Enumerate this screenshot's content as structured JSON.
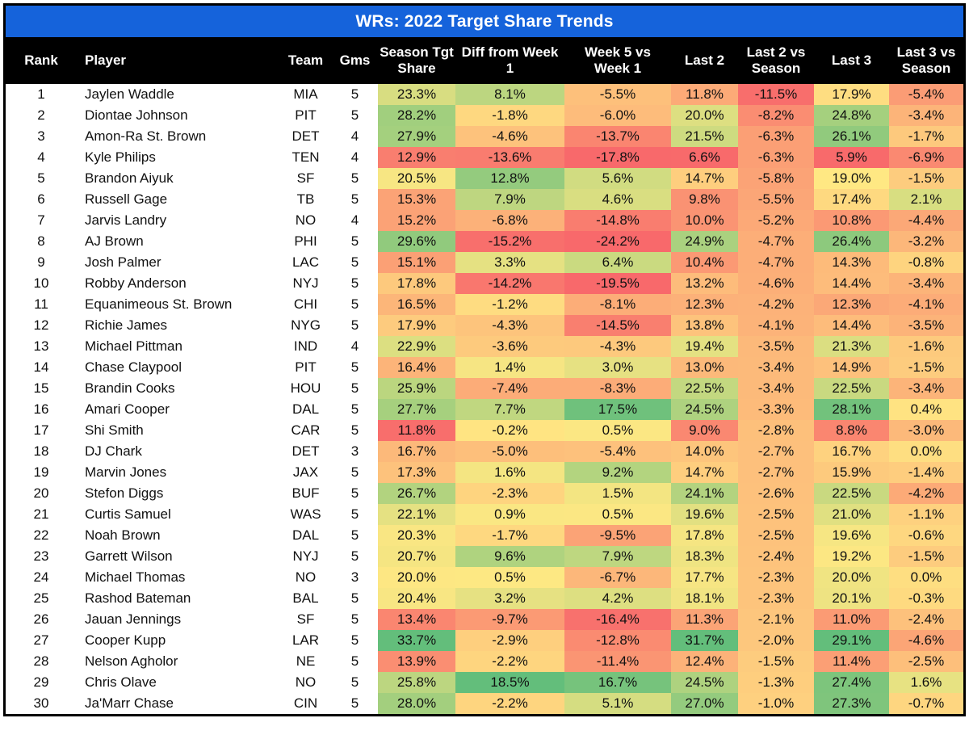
{
  "title": "WRs: 2022 Target Share Trends",
  "heatmap": {
    "red": "#F8696B",
    "yellow": "#FFE883",
    "green": "#63BE7B",
    "scales": {
      "season": [
        11.5,
        19.8,
        33.7
      ],
      "diff_wk1": [
        -16.0,
        0.3,
        18.5
      ],
      "w5_wk1": [
        -17.5,
        0.0,
        19.0
      ],
      "last2": [
        6.5,
        16.8,
        31.7
      ],
      "l2_vs_season": [
        -12.0,
        1.5,
        11.5
      ],
      "last3": [
        5.8,
        19.0,
        29.1
      ],
      "l3_vs_season": [
        -9.5,
        0.8,
        6.0
      ]
    }
  },
  "chart_data": {
    "type": "table",
    "title": "WRs: 2022 Target Share Trends",
    "columns": [
      {
        "key": "rank",
        "label": "Rank"
      },
      {
        "key": "player",
        "label": "Player"
      },
      {
        "key": "team",
        "label": "Team"
      },
      {
        "key": "gms",
        "label": "Gms"
      },
      {
        "key": "season",
        "label": "Season Tgt Share"
      },
      {
        "key": "diff_wk1",
        "label": "Diff from Week 1"
      },
      {
        "key": "w5_wk1",
        "label": "Week 5 vs Week 1"
      },
      {
        "key": "last2",
        "label": "Last 2"
      },
      {
        "key": "l2_vs_season",
        "label": "Last 2 vs Season"
      },
      {
        "key": "last3",
        "label": "Last 3"
      },
      {
        "key": "l3_vs_season",
        "label": "Last 3 vs Season"
      }
    ],
    "percent_columns": [
      "season",
      "diff_wk1",
      "w5_wk1",
      "last2",
      "l2_vs_season",
      "last3",
      "l3_vs_season"
    ],
    "rows": [
      {
        "rank": 1,
        "player": "Jaylen Waddle",
        "team": "MIA",
        "gms": 5,
        "season": 23.3,
        "diff_wk1": 8.1,
        "w5_wk1": -5.5,
        "last2": 11.8,
        "l2_vs_season": -11.5,
        "last3": 17.9,
        "l3_vs_season": -5.4
      },
      {
        "rank": 2,
        "player": "Diontae Johnson",
        "team": "PIT",
        "gms": 5,
        "season": 28.2,
        "diff_wk1": -1.8,
        "w5_wk1": -6.0,
        "last2": 20.0,
        "l2_vs_season": -8.2,
        "last3": 24.8,
        "l3_vs_season": -3.4
      },
      {
        "rank": 3,
        "player": "Amon-Ra St. Brown",
        "team": "DET",
        "gms": 4,
        "season": 27.9,
        "diff_wk1": -4.6,
        "w5_wk1": -13.7,
        "last2": 21.5,
        "l2_vs_season": -6.3,
        "last3": 26.1,
        "l3_vs_season": -1.7
      },
      {
        "rank": 4,
        "player": "Kyle Philips",
        "team": "TEN",
        "gms": 4,
        "season": 12.9,
        "diff_wk1": -13.6,
        "w5_wk1": -17.8,
        "last2": 6.6,
        "l2_vs_season": -6.3,
        "last3": 5.9,
        "l3_vs_season": -6.9
      },
      {
        "rank": 5,
        "player": "Brandon Aiyuk",
        "team": "SF",
        "gms": 5,
        "season": 20.5,
        "diff_wk1": 12.8,
        "w5_wk1": 5.6,
        "last2": 14.7,
        "l2_vs_season": -5.8,
        "last3": 19.0,
        "l3_vs_season": -1.5
      },
      {
        "rank": 6,
        "player": "Russell Gage",
        "team": "TB",
        "gms": 5,
        "season": 15.3,
        "diff_wk1": 7.9,
        "w5_wk1": 4.6,
        "last2": 9.8,
        "l2_vs_season": -5.5,
        "last3": 17.4,
        "l3_vs_season": 2.1
      },
      {
        "rank": 7,
        "player": "Jarvis Landry",
        "team": "NO",
        "gms": 4,
        "season": 15.2,
        "diff_wk1": -6.8,
        "w5_wk1": -14.8,
        "last2": 10.0,
        "l2_vs_season": -5.2,
        "last3": 10.8,
        "l3_vs_season": -4.4
      },
      {
        "rank": 8,
        "player": "AJ Brown",
        "team": "PHI",
        "gms": 5,
        "season": 29.6,
        "diff_wk1": -15.2,
        "w5_wk1": -24.2,
        "last2": 24.9,
        "l2_vs_season": -4.7,
        "last3": 26.4,
        "l3_vs_season": -3.2
      },
      {
        "rank": 9,
        "player": "Josh Palmer",
        "team": "LAC",
        "gms": 5,
        "season": 15.1,
        "diff_wk1": 3.3,
        "w5_wk1": 6.4,
        "last2": 10.4,
        "l2_vs_season": -4.7,
        "last3": 14.3,
        "l3_vs_season": -0.8
      },
      {
        "rank": 10,
        "player": "Robby Anderson",
        "team": "NYJ",
        "gms": 5,
        "season": 17.8,
        "diff_wk1": -14.2,
        "w5_wk1": -19.5,
        "last2": 13.2,
        "l2_vs_season": -4.6,
        "last3": 14.4,
        "l3_vs_season": -3.4
      },
      {
        "rank": 11,
        "player": "Equanimeous St. Brown",
        "team": "CHI",
        "gms": 5,
        "season": 16.5,
        "diff_wk1": -1.2,
        "w5_wk1": -8.1,
        "last2": 12.3,
        "l2_vs_season": -4.2,
        "last3": 12.3,
        "l3_vs_season": -4.1
      },
      {
        "rank": 12,
        "player": "Richie James",
        "team": "NYG",
        "gms": 5,
        "season": 17.9,
        "diff_wk1": -4.3,
        "w5_wk1": -14.5,
        "last2": 13.8,
        "l2_vs_season": -4.1,
        "last3": 14.4,
        "l3_vs_season": -3.5
      },
      {
        "rank": 13,
        "player": "Michael Pittman",
        "team": "IND",
        "gms": 4,
        "season": 22.9,
        "diff_wk1": -3.6,
        "w5_wk1": -4.3,
        "last2": 19.4,
        "l2_vs_season": -3.5,
        "last3": 21.3,
        "l3_vs_season": -1.6
      },
      {
        "rank": 14,
        "player": "Chase Claypool",
        "team": "PIT",
        "gms": 5,
        "season": 16.4,
        "diff_wk1": 1.4,
        "w5_wk1": 3.0,
        "last2": 13.0,
        "l2_vs_season": -3.4,
        "last3": 14.9,
        "l3_vs_season": -1.5
      },
      {
        "rank": 15,
        "player": "Brandin Cooks",
        "team": "HOU",
        "gms": 5,
        "season": 25.9,
        "diff_wk1": -7.4,
        "w5_wk1": -8.3,
        "last2": 22.5,
        "l2_vs_season": -3.4,
        "last3": 22.5,
        "l3_vs_season": -3.4
      },
      {
        "rank": 16,
        "player": "Amari Cooper",
        "team": "DAL",
        "gms": 5,
        "season": 27.7,
        "diff_wk1": 7.7,
        "w5_wk1": 17.5,
        "last2": 24.5,
        "l2_vs_season": -3.3,
        "last3": 28.1,
        "l3_vs_season": 0.4
      },
      {
        "rank": 17,
        "player": "Shi Smith",
        "team": "CAR",
        "gms": 5,
        "season": 11.8,
        "diff_wk1": -0.2,
        "w5_wk1": 0.5,
        "last2": 9.0,
        "l2_vs_season": -2.8,
        "last3": 8.8,
        "l3_vs_season": -3.0
      },
      {
        "rank": 18,
        "player": "DJ Chark",
        "team": "DET",
        "gms": 3,
        "season": 16.7,
        "diff_wk1": -5.0,
        "w5_wk1": -5.4,
        "last2": 14.0,
        "l2_vs_season": -2.7,
        "last3": 16.7,
        "l3_vs_season": 0.0
      },
      {
        "rank": 19,
        "player": "Marvin Jones",
        "team": "JAX",
        "gms": 5,
        "season": 17.3,
        "diff_wk1": 1.6,
        "w5_wk1": 9.2,
        "last2": 14.7,
        "l2_vs_season": -2.7,
        "last3": 15.9,
        "l3_vs_season": -1.4
      },
      {
        "rank": 20,
        "player": "Stefon Diggs",
        "team": "BUF",
        "gms": 5,
        "season": 26.7,
        "diff_wk1": -2.3,
        "w5_wk1": 1.5,
        "last2": 24.1,
        "l2_vs_season": -2.6,
        "last3": 22.5,
        "l3_vs_season": -4.2
      },
      {
        "rank": 21,
        "player": "Curtis Samuel",
        "team": "WAS",
        "gms": 5,
        "season": 22.1,
        "diff_wk1": 0.9,
        "w5_wk1": 0.5,
        "last2": 19.6,
        "l2_vs_season": -2.5,
        "last3": 21.0,
        "l3_vs_season": -1.1
      },
      {
        "rank": 22,
        "player": "Noah Brown",
        "team": "DAL",
        "gms": 5,
        "season": 20.3,
        "diff_wk1": -1.7,
        "w5_wk1": -9.5,
        "last2": 17.8,
        "l2_vs_season": -2.5,
        "last3": 19.6,
        "l3_vs_season": -0.6
      },
      {
        "rank": 23,
        "player": "Garrett Wilson",
        "team": "NYJ",
        "gms": 5,
        "season": 20.7,
        "diff_wk1": 9.6,
        "w5_wk1": 7.9,
        "last2": 18.3,
        "l2_vs_season": -2.4,
        "last3": 19.2,
        "l3_vs_season": -1.5
      },
      {
        "rank": 24,
        "player": "Michael Thomas",
        "team": "NO",
        "gms": 3,
        "season": 20.0,
        "diff_wk1": 0.5,
        "w5_wk1": -6.7,
        "last2": 17.7,
        "l2_vs_season": -2.3,
        "last3": 20.0,
        "l3_vs_season": 0.0
      },
      {
        "rank": 25,
        "player": "Rashod Bateman",
        "team": "BAL",
        "gms": 5,
        "season": 20.4,
        "diff_wk1": 3.2,
        "w5_wk1": 4.2,
        "last2": 18.1,
        "l2_vs_season": -2.3,
        "last3": 20.1,
        "l3_vs_season": -0.3
      },
      {
        "rank": 26,
        "player": "Jauan Jennings",
        "team": "SF",
        "gms": 5,
        "season": 13.4,
        "diff_wk1": -9.7,
        "w5_wk1": -16.4,
        "last2": 11.3,
        "l2_vs_season": -2.1,
        "last3": 11.0,
        "l3_vs_season": -2.4
      },
      {
        "rank": 27,
        "player": "Cooper Kupp",
        "team": "LAR",
        "gms": 5,
        "season": 33.7,
        "diff_wk1": -2.9,
        "w5_wk1": -12.8,
        "last2": 31.7,
        "l2_vs_season": -2.0,
        "last3": 29.1,
        "l3_vs_season": -4.6
      },
      {
        "rank": 28,
        "player": "Nelson Agholor",
        "team": "NE",
        "gms": 5,
        "season": 13.9,
        "diff_wk1": -2.2,
        "w5_wk1": -11.4,
        "last2": 12.4,
        "l2_vs_season": -1.5,
        "last3": 11.4,
        "l3_vs_season": -2.5
      },
      {
        "rank": 29,
        "player": "Chris Olave",
        "team": "NO",
        "gms": 5,
        "season": 25.8,
        "diff_wk1": 18.5,
        "w5_wk1": 16.7,
        "last2": 24.5,
        "l2_vs_season": -1.3,
        "last3": 27.4,
        "l3_vs_season": 1.6
      },
      {
        "rank": 30,
        "player": "Ja'Marr Chase",
        "team": "CIN",
        "gms": 5,
        "season": 28.0,
        "diff_wk1": -2.2,
        "w5_wk1": 5.1,
        "last2": 27.0,
        "l2_vs_season": -1.0,
        "last3": 27.3,
        "l3_vs_season": -0.7
      }
    ]
  }
}
